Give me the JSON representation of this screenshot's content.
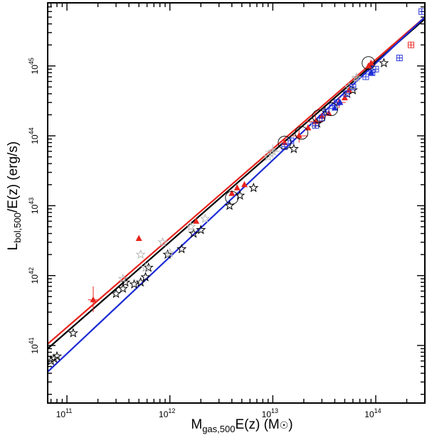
{
  "chart_data": {
    "type": "scatter",
    "xscale": "log",
    "yscale": "log",
    "xlim": [
      65000000000.0,
      300000000000000.0
    ],
    "ylim": [
      1.5e+40,
      8e+45
    ],
    "xlabel": {
      "main": "M",
      "sub": "gas,500",
      "rest": "E(z)  (M",
      "tail": ")"
    },
    "ylabel": {
      "main": "L",
      "sub": "bol,500",
      "rest": "/E(z)  (erg/s)"
    },
    "x_ticks": [
      {
        "value": 100000000000.0,
        "label": "10",
        "exp": "11"
      },
      {
        "value": 1000000000000.0,
        "label": "10",
        "exp": "12"
      },
      {
        "value": 10000000000000.0,
        "label": "10",
        "exp": "13"
      },
      {
        "value": 100000000000000.0,
        "label": "10",
        "exp": "14"
      }
    ],
    "y_ticks": [
      {
        "value": 1e+41,
        "label": "10",
        "exp": "41"
      },
      {
        "value": 1e+42,
        "label": "10",
        "exp": "42"
      },
      {
        "value": 1e+43,
        "label": "10",
        "exp": "43"
      },
      {
        "value": 1e+44,
        "label": "10",
        "exp": "44"
      },
      {
        "value": 1e+45,
        "label": "10",
        "exp": "45"
      }
    ],
    "colors": {
      "red": "#e8231c",
      "blue": "#1c2bd6",
      "black": "#000000",
      "gray": "#b8b8b8"
    },
    "fit_lines": [
      {
        "color": "red",
        "x": [
          65000000000.0,
          300000000000000.0
        ],
        "y": [
          1.05e+41,
          5e+45
        ]
      },
      {
        "color": "black",
        "x": [
          65000000000.0,
          300000000000000.0
        ],
        "y": [
          9e+40,
          4.7e+45
        ]
      },
      {
        "color": "blue",
        "x": [
          65000000000.0,
          300000000000000.0
        ],
        "y": [
          4.2e+40,
          5e+45
        ]
      }
    ],
    "series": [
      {
        "marker": "star-open",
        "color": "black",
        "points": [
          [
            70000000000.0,
            6e+40
          ],
          [
            75000000000.0,
            6.5e+40
          ],
          [
            80000000000.0,
            7e+40
          ],
          [
            115000000000.0,
            1.5e+41
          ],
          [
            300000000000.0,
            5.5e+41
          ],
          [
            350000000000.0,
            6.5e+41
          ],
          [
            370000000000.0,
            8e+41
          ],
          [
            450000000000.0,
            7.5e+41
          ],
          [
            520000000000.0,
            8e+41
          ],
          [
            580000000000.0,
            9.5e+41
          ],
          [
            620000000000.0,
            1.3e+42
          ],
          [
            950000000000.0,
            2e+42
          ],
          [
            1300000000000.0,
            2.4e+42
          ],
          [
            1700000000000.0,
            4e+42
          ],
          [
            2000000000000.0,
            4.5e+42
          ],
          [
            3800000000000.0,
            1e+43
          ],
          [
            4800000000000.0,
            1.4e+43
          ],
          [
            6500000000000.0,
            1.8e+43
          ],
          [
            16000000000000.0,
            6.5e+43
          ],
          [
            27000000000000.0,
            1.5e+44
          ],
          [
            53000000000000.0,
            4e+44
          ],
          [
            60000000000000.0,
            4.5e+44
          ],
          [
            120000000000000.0,
            1.1e+45
          ]
        ]
      },
      {
        "marker": "star-open",
        "color": "gray",
        "points": [
          [
            350000000000.0,
            9e+41
          ],
          [
            520000000000.0,
            2e+42
          ],
          [
            580000000000.0,
            1.3e+42
          ],
          [
            850000000000.0,
            3e+42
          ],
          [
            1000000000000.0,
            2.1e+42
          ],
          [
            1600000000000.0,
            5e+42
          ],
          [
            2200000000000.0,
            6.5e+42
          ],
          [
            9000000000000.0,
            5e+43
          ],
          [
            10000000000000.0,
            6e+43
          ],
          [
            25000000000000.0,
            1.5e+44
          ],
          [
            55000000000000.0,
            5e+44
          ],
          [
            65000000000000.0,
            6.8e+44
          ]
        ]
      },
      {
        "marker": "triangle",
        "color": "red",
        "points": [
          [
            180000000000.0,
            4.5e+41
          ],
          [
            500000000000.0,
            3.4e+42
          ],
          [
            1800000000000.0,
            6e+42
          ],
          [
            4000000000000.0,
            1.5e+43
          ],
          [
            4500000000000.0,
            1.8e+43
          ],
          [
            5300000000000.0,
            2e+43
          ],
          [
            13000000000000.0,
            8e+43
          ],
          [
            18000000000000.0,
            1e+44
          ],
          [
            22000000000000.0,
            1.3e+44
          ],
          [
            26000000000000.0,
            1.6e+44
          ],
          [
            30000000000000.0,
            1.9e+44
          ],
          [
            35000000000000.0,
            2.1e+44
          ],
          [
            44000000000000.0,
            3e+44
          ],
          [
            50000000000000.0,
            3.5e+44
          ],
          [
            55000000000000.0,
            4.5e+44
          ],
          [
            85000000000000.0,
            1e+45
          ],
          [
            90000000000000.0,
            1.1e+45
          ]
        ]
      },
      {
        "marker": "triangle",
        "color": "blue",
        "points": [
          [
            40000000000000.0,
            2.5e+44
          ],
          [
            45000000000000.0,
            3e+44
          ],
          [
            90000000000000.0,
            8e+44
          ]
        ]
      },
      {
        "marker": "square-plus",
        "color": "blue",
        "points": [
          [
            13000000000000.0,
            7e+43
          ],
          [
            15000000000000.0,
            8.5e+43
          ],
          [
            26000000000000.0,
            1.4e+44
          ],
          [
            30000000000000.0,
            1.8e+44
          ],
          [
            33000000000000.0,
            2.2e+44
          ],
          [
            38000000000000.0,
            2.7e+44
          ],
          [
            42000000000000.0,
            3e+44
          ],
          [
            52000000000000.0,
            4e+44
          ],
          [
            60000000000000.0,
            5e+44
          ],
          [
            80000000000000.0,
            7e+44
          ],
          [
            92000000000000.0,
            8e+44
          ],
          [
            100000000000000.0,
            9e+44
          ],
          [
            170000000000000.0,
            1.3e+45
          ],
          [
            280000000000000.0,
            6e+45
          ]
        ]
      },
      {
        "marker": "square-plus",
        "color": "red",
        "points": [
          [
            220000000000000.0,
            2e+45
          ]
        ]
      },
      {
        "marker": "circle",
        "color": "black",
        "points": [
          [
            4000000000000.0,
            1.3e+43
          ],
          [
            13000000000000.0,
            8e+43
          ],
          [
            19000000000000.0,
            1.1e+44
          ],
          [
            28000000000000.0,
            1.9e+44
          ],
          [
            37000000000000.0,
            2.4e+44
          ],
          [
            85000000000000.0,
            1.1e+45
          ]
        ]
      }
    ],
    "error_bars": [
      {
        "color": "red",
        "x": 180000000000.0,
        "y": 4.5e+41,
        "xerr": [
          160000000000.0,
          200000000000.0
        ],
        "yerr": [
          3e+41,
          7e+41
        ]
      },
      {
        "color": "red",
        "x": 18000000000000.0,
        "y": 1e+44,
        "xerr": [
          15000000000000.0,
          22000000000000.0
        ],
        "yerr": [
          8e+43,
          1.2e+44
        ]
      },
      {
        "color": "red",
        "x": 26000000000000.0,
        "y": 1.6e+44,
        "xerr": [
          21000000000000.0,
          31000000000000.0
        ],
        "yerr": [
          1.3e+44,
          2e+44
        ]
      },
      {
        "color": "red",
        "x": 44000000000000.0,
        "y": 3e+44,
        "xerr": [
          38000000000000.0,
          51000000000000.0
        ],
        "yerr": [
          2.5e+44,
          3.6e+44
        ]
      },
      {
        "color": "gray",
        "x": 10000000000000.0,
        "y": 6e+43,
        "xerr": [
          8500000000000.0,
          12000000000000.0
        ],
        "yerr": [
          4.8e+43,
          7.5e+43
        ]
      },
      {
        "color": "gray",
        "x": 65000000000000.0,
        "y": 6.8e+44,
        "xerr": [
          58000000000000.0,
          72000000000000.0
        ],
        "yerr": [
          5.8e+44,
          8e+44
        ]
      }
    ]
  }
}
